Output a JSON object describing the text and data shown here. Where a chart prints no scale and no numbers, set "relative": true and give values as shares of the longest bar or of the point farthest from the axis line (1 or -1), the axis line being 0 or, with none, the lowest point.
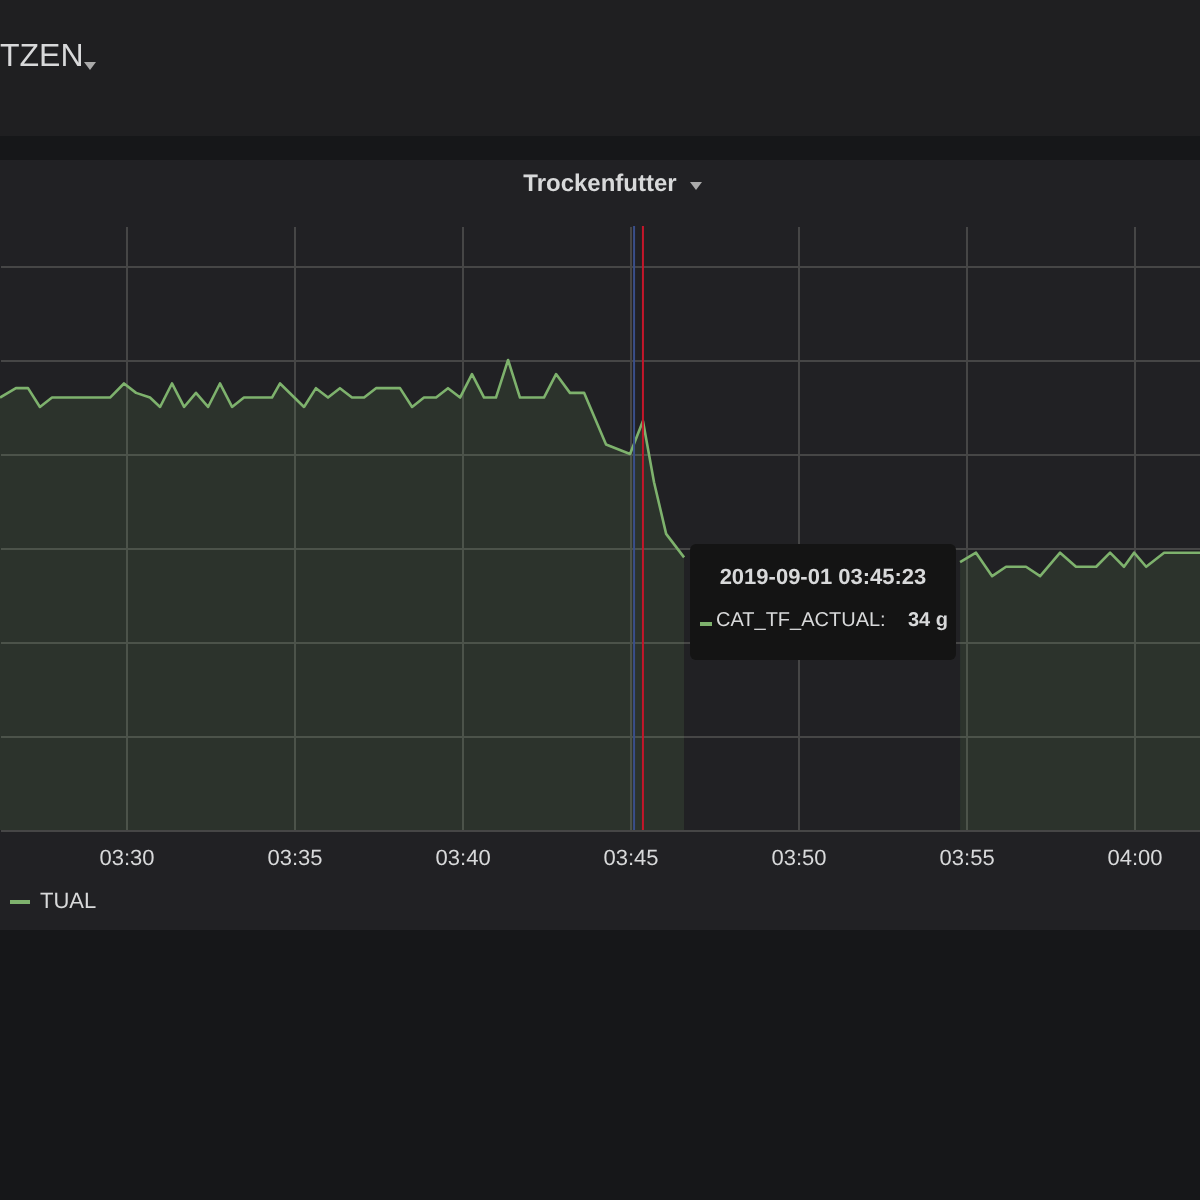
{
  "chart_data": {
    "type": "area",
    "title": "Trockenfutter",
    "relative": true,
    "grid": true,
    "legend": "bottom left",
    "annotations": [
      "TZEN",
      "2019-09-01 03:45:23",
      "CAT_TF_ACTUAL:",
      "34 g"
    ],
    "x": [
      3.4375,
      3.4454,
      3.4514,
      3.4573,
      3.4633,
      3.4921,
      3.499,
      3.505,
      3.5119,
      3.5169,
      3.5228,
      3.5288,
      3.5347,
      3.5407,
      3.5466,
      3.5526,
      3.5585,
      3.5724,
      3.5764,
      3.5883,
      3.5942,
      3.6002,
      3.6061,
      3.6121,
      3.6181,
      3.624,
      3.6359,
      3.6419,
      3.6478,
      3.6538,
      3.6597,
      3.6657,
      3.6716,
      3.6776,
      3.6835,
      3.6895,
      3.6954,
      3.7073,
      3.7133,
      3.7202,
      3.7272,
      3.7381,
      3.75,
      3.7564,
      3.7619,
      3.7679,
      3.7768,
      3.8442,
      3.9137,
      3.9216,
      3.9296,
      3.9365,
      3.9464,
      3.9534,
      3.9633,
      3.9712,
      3.9812,
      3.9881,
      3.995,
      4.0,
      4.006,
      4.0149,
      4.0327
    ],
    "series": [
      {
        "name": "TUAL",
        "color": "#7eb26d",
        "values": [
          0.92,
          0.94,
          0.94,
          0.9,
          0.92,
          0.92,
          0.95,
          0.93,
          0.92,
          0.9,
          0.95,
          0.9,
          0.93,
          0.9,
          0.95,
          0.9,
          0.92,
          0.92,
          0.95,
          0.9,
          0.94,
          0.92,
          0.94,
          0.92,
          0.92,
          0.94,
          0.94,
          0.9,
          0.92,
          0.92,
          0.94,
          0.92,
          0.97,
          0.92,
          0.92,
          1,
          0.92,
          0.92,
          0.97,
          0.93,
          0.93,
          0.82,
          0.8,
          0.87,
          0.74,
          0.63,
          0.58,
          null,
          0.57,
          0.59,
          0.54,
          0.56,
          0.56,
          0.54,
          0.59,
          0.56,
          0.56,
          0.59,
          0.56,
          0.59,
          0.56,
          0.59,
          0.59
        ]
      }
    ],
    "xlim": [
      3.4375,
      4.0327
    ],
    "xticks": [
      {
        "value": 3.5,
        "label": "03:30"
      },
      {
        "value": 3.5833,
        "label": "03:35"
      },
      {
        "value": 3.6667,
        "label": "03:40"
      },
      {
        "value": 3.75,
        "label": "03:45"
      },
      {
        "value": 3.8333,
        "label": "03:50"
      },
      {
        "value": 3.9167,
        "label": "03:55"
      },
      {
        "value": 4.0,
        "label": "04:00"
      }
    ],
    "ref_lines": [
      {
        "axis": "x",
        "value": 3.752,
        "color": "#3a4f8a"
      },
      {
        "axis": "x",
        "value": 3.7564,
        "color": "#c4162a"
      }
    ]
  }
}
